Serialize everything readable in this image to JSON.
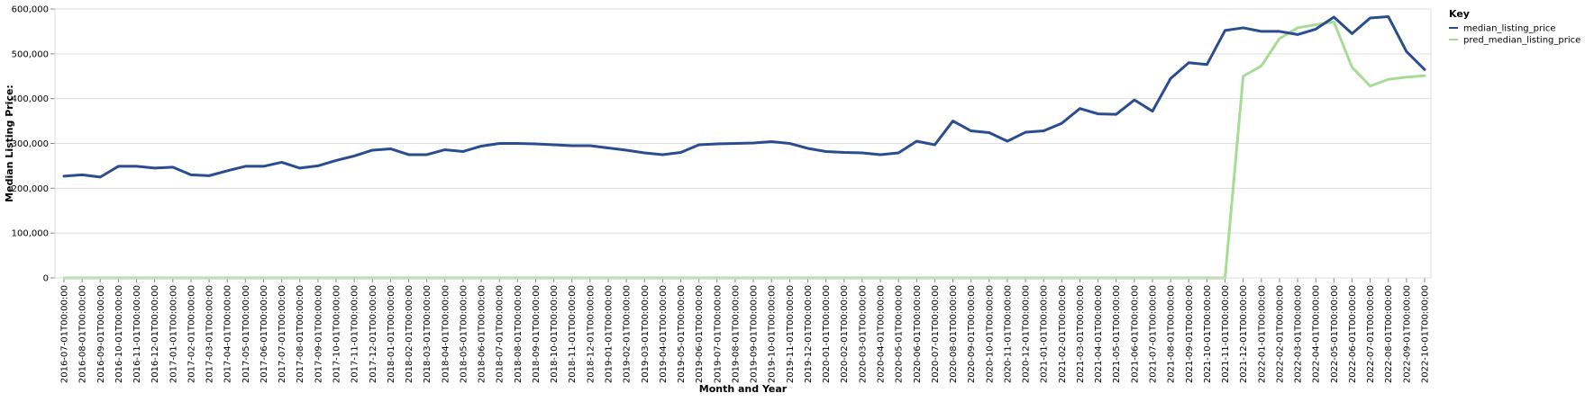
{
  "chart_data": {
    "type": "line",
    "xlabel": "Month and Year",
    "ylabel": "Median Listing Price:",
    "ylim": [
      0,
      600000
    ],
    "y_ticks": [
      0,
      100000,
      200000,
      300000,
      400000,
      500000,
      600000
    ],
    "y_tick_labels": [
      "0",
      "100,000",
      "200,000",
      "300,000",
      "400,000",
      "500,000",
      "600,000"
    ],
    "grid": true,
    "legend": {
      "title": "Key",
      "placement": "top-right"
    },
    "x": [
      "2016-07-01T00:00:00",
      "2016-08-01T00:00:00",
      "2016-09-01T00:00:00",
      "2016-10-01T00:00:00",
      "2016-11-01T00:00:00",
      "2016-12-01T00:00:00",
      "2017-01-01T00:00:00",
      "2017-02-01T00:00:00",
      "2017-03-01T00:00:00",
      "2017-04-01T00:00:00",
      "2017-05-01T00:00:00",
      "2017-06-01T00:00:00",
      "2017-07-01T00:00:00",
      "2017-08-01T00:00:00",
      "2017-09-01T00:00:00",
      "2017-10-01T00:00:00",
      "2017-11-01T00:00:00",
      "2017-12-01T00:00:00",
      "2018-01-01T00:00:00",
      "2018-02-01T00:00:00",
      "2018-03-01T00:00:00",
      "2018-04-01T00:00:00",
      "2018-05-01T00:00:00",
      "2018-06-01T00:00:00",
      "2018-07-01T00:00:00",
      "2018-08-01T00:00:00",
      "2018-09-01T00:00:00",
      "2018-10-01T00:00:00",
      "2018-11-01T00:00:00",
      "2018-12-01T00:00:00",
      "2019-01-01T00:00:00",
      "2019-02-01T00:00:00",
      "2019-03-01T00:00:00",
      "2019-04-01T00:00:00",
      "2019-05-01T00:00:00",
      "2019-06-01T00:00:00",
      "2019-07-01T00:00:00",
      "2019-08-01T00:00:00",
      "2019-09-01T00:00:00",
      "2019-10-01T00:00:00",
      "2019-11-01T00:00:00",
      "2019-12-01T00:00:00",
      "2020-01-01T00:00:00",
      "2020-02-01T00:00:00",
      "2020-03-01T00:00:00",
      "2020-04-01T00:00:00",
      "2020-05-01T00:00:00",
      "2020-06-01T00:00:00",
      "2020-07-01T00:00:00",
      "2020-08-01T00:00:00",
      "2020-09-01T00:00:00",
      "2020-10-01T00:00:00",
      "2020-11-01T00:00:00",
      "2020-12-01T00:00:00",
      "2021-01-01T00:00:00",
      "2021-02-01T00:00:00",
      "2021-03-01T00:00:00",
      "2021-04-01T00:00:00",
      "2021-05-01T00:00:00",
      "2021-06-01T00:00:00",
      "2021-07-01T00:00:00",
      "2021-08-01T00:00:00",
      "2021-09-01T00:00:00",
      "2021-10-01T00:00:00",
      "2021-11-01T00:00:00",
      "2021-12-01T00:00:00",
      "2022-01-01T00:00:00",
      "2022-02-01T00:00:00",
      "2022-03-01T00:00:00",
      "2022-04-01T00:00:00",
      "2022-05-01T00:00:00",
      "2022-06-01T00:00:00",
      "2022-07-01T00:00:00",
      "2022-08-01T00:00:00",
      "2022-09-01T00:00:00",
      "2022-10-01T00:00:00"
    ],
    "series": [
      {
        "name": "median_listing_price",
        "color": "#2a4d8f",
        "values": [
          227000,
          230000,
          225000,
          249000,
          249000,
          245000,
          247000,
          230000,
          228000,
          239000,
          249000,
          249000,
          258000,
          245000,
          250000,
          262000,
          272000,
          285000,
          288000,
          275000,
          275000,
          286000,
          282000,
          294000,
          300000,
          300000,
          299000,
          297000,
          295000,
          295000,
          290000,
          285000,
          279000,
          275000,
          280000,
          297000,
          299000,
          300000,
          301000,
          304000,
          300000,
          289000,
          282000,
          280000,
          279000,
          275000,
          279000,
          305000,
          297000,
          350000,
          328000,
          324000,
          305000,
          325000,
          328000,
          345000,
          378000,
          366000,
          365000,
          397000,
          372000,
          445000,
          480000,
          476000,
          552000,
          558000,
          550000,
          550000,
          543000,
          555000,
          582000,
          545000,
          580000,
          583000,
          505000,
          465000
        ]
      },
      {
        "name": "pred_median_listing_price",
        "color": "#a6dc96",
        "values": [
          0,
          0,
          0,
          0,
          0,
          0,
          0,
          0,
          0,
          0,
          0,
          0,
          0,
          0,
          0,
          0,
          0,
          0,
          0,
          0,
          0,
          0,
          0,
          0,
          0,
          0,
          0,
          0,
          0,
          0,
          0,
          0,
          0,
          0,
          0,
          0,
          0,
          0,
          0,
          0,
          0,
          0,
          0,
          0,
          0,
          0,
          0,
          0,
          0,
          0,
          0,
          0,
          0,
          0,
          0,
          0,
          0,
          0,
          0,
          0,
          0,
          0,
          0,
          0,
          0,
          450000,
          473000,
          534000,
          558000,
          565000,
          571000,
          470000,
          428000,
          443000,
          448000,
          451000
        ]
      }
    ]
  }
}
